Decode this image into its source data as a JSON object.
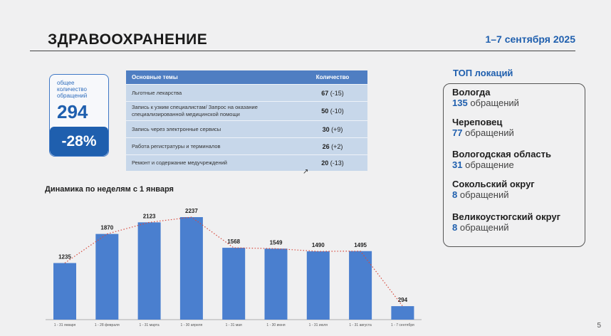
{
  "header": {
    "title": "ЗДРАВООХРАНЕНИЕ",
    "date": "1–7 сентября 2025"
  },
  "kpi": {
    "caption_line1": "общее",
    "caption_line2": "количество",
    "caption_line3": "обращений",
    "total": "294",
    "change": "-28%"
  },
  "topics": {
    "col_theme": "Основные темы",
    "col_count": "Количество",
    "rows": [
      {
        "theme": "Льготные лекарства",
        "count": "67",
        "delta": "(-15)"
      },
      {
        "theme": "Запись к узким специалистам/ Запрос на оказание специализированной медицинской помощи",
        "count": "50",
        "delta": "(-10)"
      },
      {
        "theme": "Запись через электронные сервисы",
        "count": "30",
        "delta": "(+9)"
      },
      {
        "theme": "Работа регистратуры и терминалов",
        "count": "26",
        "delta": "(+2)"
      },
      {
        "theme": "Ремонт и содержание медучреждений",
        "count": "20",
        "delta": "(-13)"
      }
    ]
  },
  "chart_data": {
    "type": "bar",
    "title": "Динамика по неделям с 1 января",
    "categories": [
      "1 - 31 января",
      "1 - 28 февраля",
      "1 - 31 марта",
      "1 - 30 апреля",
      "1 - 31 мая",
      "1 - 30 июня",
      "1 - 31 июля",
      "1 - 31 августа",
      "1 - 7 сентября"
    ],
    "values": [
      1235,
      1870,
      2123,
      2237,
      1568,
      1549,
      1490,
      1495,
      294
    ],
    "trend_line": "dotted",
    "colors": {
      "bar": "#4a7fcf",
      "trend": "#d84a3e"
    },
    "grid": false,
    "legend": "none"
  },
  "top_locations": {
    "title": "ТОП локаций",
    "items": [
      {
        "name": "Вологда",
        "count": "135",
        "suffix": "обращений"
      },
      {
        "name": "Череповец",
        "count": "77",
        "suffix": "обращений"
      },
      {
        "name": "Вологодская область",
        "count": "31",
        "suffix": "обращение"
      },
      {
        "name": "Сокольский округ",
        "count": "8",
        "suffix": "обращений"
      },
      {
        "name": "Великоустюгский округ",
        "count": "8",
        "suffix": "обращений"
      }
    ]
  },
  "page": {
    "number": "5"
  },
  "colors": {
    "accent": "#1f5fae",
    "table_header": "#4f7ec2",
    "table_row": "#c7d7ea"
  }
}
